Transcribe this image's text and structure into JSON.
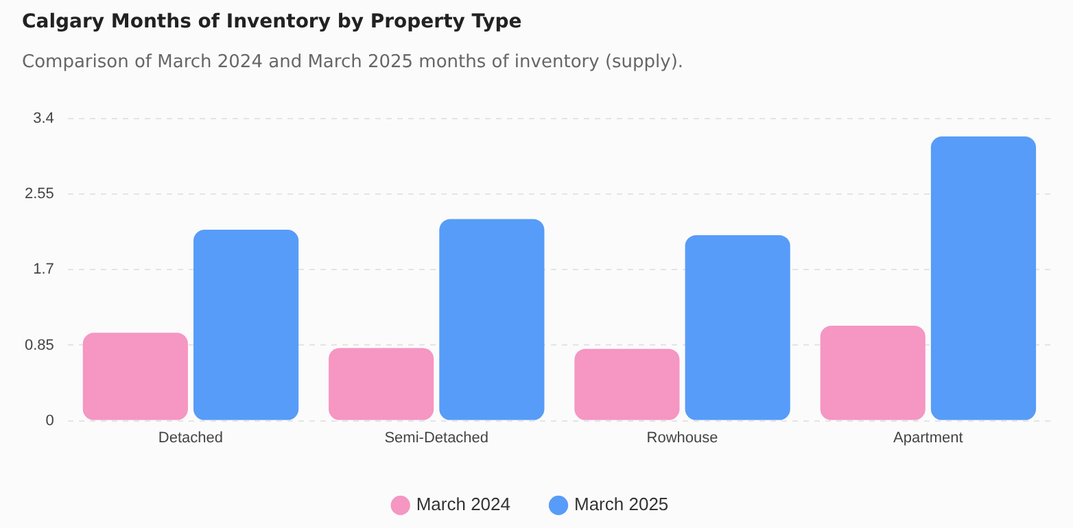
{
  "chart_data": {
    "type": "bar",
    "title": "Calgary Months of Inventory by Property Type",
    "subtitle": "Comparison of March 2024 and March 2025 months of inventory (supply).",
    "categories": [
      "Detached",
      "Semi-Detached",
      "Rowhouse",
      "Apartment"
    ],
    "series": [
      {
        "name": "March 2024",
        "color": "#f596c3",
        "values": [
          0.99,
          0.82,
          0.81,
          1.07
        ]
      },
      {
        "name": "March 2025",
        "color": "#579cf8",
        "values": [
          2.15,
          2.27,
          2.09,
          3.2
        ]
      }
    ],
    "ylim": [
      0,
      3.4
    ],
    "yticks": [
      0,
      0.85,
      1.7,
      2.55,
      3.4
    ],
    "grid": "y",
    "legend": "bottom"
  }
}
